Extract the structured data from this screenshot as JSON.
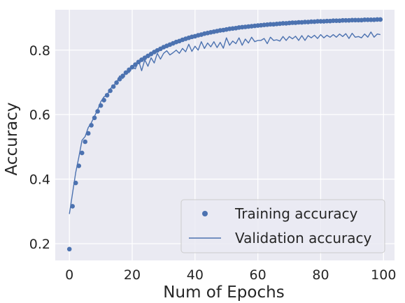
{
  "chart_data": {
    "type": "line",
    "title": "",
    "xlabel": "Num of Epochs",
    "ylabel": "Accuracy",
    "xlim": [
      -4.5,
      103.5
    ],
    "ylim": [
      0.148,
      0.925
    ],
    "x_ticks": [
      "0",
      "20",
      "40",
      "60",
      "80",
      "100"
    ],
    "y_ticks": [
      "0.2",
      "0.4",
      "0.6",
      "0.8"
    ],
    "x_tick_values": [
      0,
      20,
      40,
      60,
      80,
      100
    ],
    "y_tick_values": [
      0.2,
      0.4,
      0.6,
      0.8
    ],
    "grid": true,
    "legend_position": "lower-right",
    "background": "#eaeaf2",
    "series": [
      {
        "name": "Training accuracy",
        "style": "markers",
        "color": "#4c72b0",
        "x": [
          0,
          1,
          2,
          3,
          4,
          5,
          6,
          7,
          8,
          9,
          10,
          11,
          12,
          13,
          14,
          15,
          16,
          17,
          18,
          19,
          20,
          21,
          22,
          23,
          24,
          25,
          26,
          27,
          28,
          29,
          30,
          31,
          32,
          33,
          34,
          35,
          36,
          37,
          38,
          39,
          40,
          41,
          42,
          43,
          44,
          45,
          46,
          47,
          48,
          49,
          50,
          51,
          52,
          53,
          54,
          55,
          56,
          57,
          58,
          59,
          60,
          61,
          62,
          63,
          64,
          65,
          66,
          67,
          68,
          69,
          70,
          71,
          72,
          73,
          74,
          75,
          76,
          77,
          78,
          79,
          80,
          81,
          82,
          83,
          84,
          85,
          86,
          87,
          88,
          89,
          90,
          91,
          92,
          93,
          94,
          95,
          96,
          97,
          98,
          99
        ],
        "y": [
          0.183,
          0.316,
          0.388,
          0.441,
          0.481,
          0.516,
          0.542,
          0.567,
          0.59,
          0.61,
          0.628,
          0.645,
          0.66,
          0.674,
          0.687,
          0.699,
          0.71,
          0.72,
          0.73,
          0.739,
          0.747,
          0.755,
          0.763,
          0.77,
          0.776,
          0.782,
          0.788,
          0.794,
          0.799,
          0.804,
          0.809,
          0.813,
          0.817,
          0.821,
          0.825,
          0.828,
          0.832,
          0.835,
          0.838,
          0.841,
          0.843,
          0.846,
          0.848,
          0.851,
          0.853,
          0.855,
          0.857,
          0.859,
          0.861,
          0.862,
          0.864,
          0.866,
          0.867,
          0.868,
          0.87,
          0.871,
          0.872,
          0.873,
          0.874,
          0.875,
          0.876,
          0.877,
          0.878,
          0.879,
          0.88,
          0.88,
          0.881,
          0.882,
          0.883,
          0.883,
          0.884,
          0.885,
          0.885,
          0.886,
          0.886,
          0.887,
          0.887,
          0.888,
          0.888,
          0.889,
          0.889,
          0.889,
          0.89,
          0.89,
          0.891,
          0.891,
          0.891,
          0.892,
          0.892,
          0.892,
          0.893,
          0.893,
          0.893,
          0.893,
          0.894,
          0.894,
          0.894,
          0.894,
          0.895,
          0.895
        ]
      },
      {
        "name": "Validation accuracy",
        "style": "line",
        "color": "#4c72b0",
        "x": [
          0,
          1,
          2,
          3,
          4,
          5,
          6,
          7,
          8,
          9,
          10,
          11,
          12,
          13,
          14,
          15,
          16,
          17,
          18,
          19,
          20,
          21,
          22,
          23,
          24,
          25,
          26,
          27,
          28,
          29,
          30,
          31,
          32,
          33,
          34,
          35,
          36,
          37,
          38,
          39,
          40,
          41,
          42,
          43,
          44,
          45,
          46,
          47,
          48,
          49,
          50,
          51,
          52,
          53,
          54,
          55,
          56,
          57,
          58,
          59,
          60,
          61,
          62,
          63,
          64,
          65,
          66,
          67,
          68,
          69,
          70,
          71,
          72,
          73,
          74,
          75,
          76,
          77,
          78,
          79,
          80,
          81,
          82,
          83,
          84,
          85,
          86,
          87,
          88,
          89,
          90,
          91,
          92,
          93,
          94,
          95,
          96,
          97,
          98,
          99
        ],
        "y": [
          0.292,
          0.356,
          0.42,
          0.468,
          0.52,
          0.532,
          0.56,
          0.575,
          0.595,
          0.615,
          0.64,
          0.655,
          0.66,
          0.68,
          0.69,
          0.7,
          0.72,
          0.712,
          0.735,
          0.73,
          0.748,
          0.742,
          0.768,
          0.736,
          0.77,
          0.75,
          0.776,
          0.76,
          0.79,
          0.772,
          0.79,
          0.798,
          0.785,
          0.792,
          0.8,
          0.79,
          0.805,
          0.795,
          0.818,
          0.796,
          0.812,
          0.8,
          0.826,
          0.805,
          0.822,
          0.81,
          0.826,
          0.808,
          0.824,
          0.806,
          0.838,
          0.815,
          0.828,
          0.82,
          0.838,
          0.815,
          0.834,
          0.822,
          0.84,
          0.826,
          0.83,
          0.83,
          0.836,
          0.82,
          0.84,
          0.83,
          0.832,
          0.828,
          0.842,
          0.83,
          0.842,
          0.835,
          0.843,
          0.83,
          0.845,
          0.83,
          0.845,
          0.838,
          0.846,
          0.836,
          0.848,
          0.838,
          0.846,
          0.84,
          0.848,
          0.84,
          0.85,
          0.842,
          0.851,
          0.836,
          0.852,
          0.84,
          0.842,
          0.838,
          0.85,
          0.84,
          0.856,
          0.84,
          0.85,
          0.848
        ]
      }
    ]
  }
}
